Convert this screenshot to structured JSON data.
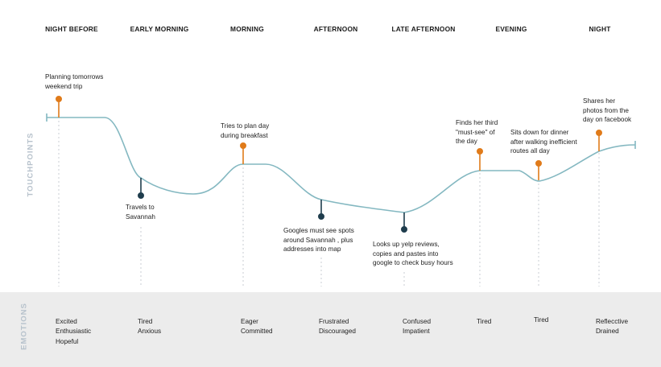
{
  "phases": [
    "NIGHT BEFORE",
    "EARLY MORNING",
    "MORNING",
    "AFTERNOON",
    "LATE AFTERNOON",
    "EVENING",
    "NIGHT"
  ],
  "row_labels": {
    "touchpoints": "TOUCHPOINTS",
    "emotions": "EMOTIONS"
  },
  "touchpoints": [
    {
      "text": "Planning tomorrows\nweekend trip",
      "direction": "up",
      "phase": "NIGHT BEFORE"
    },
    {
      "text": "Travels to\nSavannah",
      "direction": "down",
      "phase": "EARLY MORNING"
    },
    {
      "text": "Tries to plan day\nduring breakfast",
      "direction": "up",
      "phase": "MORNING"
    },
    {
      "text": "Googles must see spots\naround Savannah , plus\naddresses into map",
      "direction": "down",
      "phase": "AFTERNOON"
    },
    {
      "text": "Looks up yelp reviews,\ncopies and pastes into\ngoogle to check busy hours",
      "direction": "down",
      "phase": "LATE AFTERNOON"
    },
    {
      "text": "Finds her third\n\"must-see\" of\nthe day",
      "direction": "up",
      "phase": "EVENING"
    },
    {
      "text": "Sits down for dinner\nafter walking inefficient\nroutes all day",
      "direction": "up",
      "phase": "EVENING"
    },
    {
      "text": "Shares her\nphotos from the\nday on facebook",
      "direction": "up",
      "phase": "NIGHT"
    }
  ],
  "emotions": [
    "Excited\nEnthusiastic\nHopeful",
    "Tired\nAnxious",
    "Eager\nCommitted",
    "Frustrated\nDiscouraged",
    "Confused\nImpatient",
    "Tired",
    "Tired",
    "Reflecctive\nDrained"
  ],
  "colors": {
    "curve": "#84b8c1",
    "up_marker": "#e07b1a",
    "down_marker": "#1f3d4d",
    "guide": "#c9ced3",
    "band": "#ececec",
    "side_label": "#b7c2cc"
  }
}
